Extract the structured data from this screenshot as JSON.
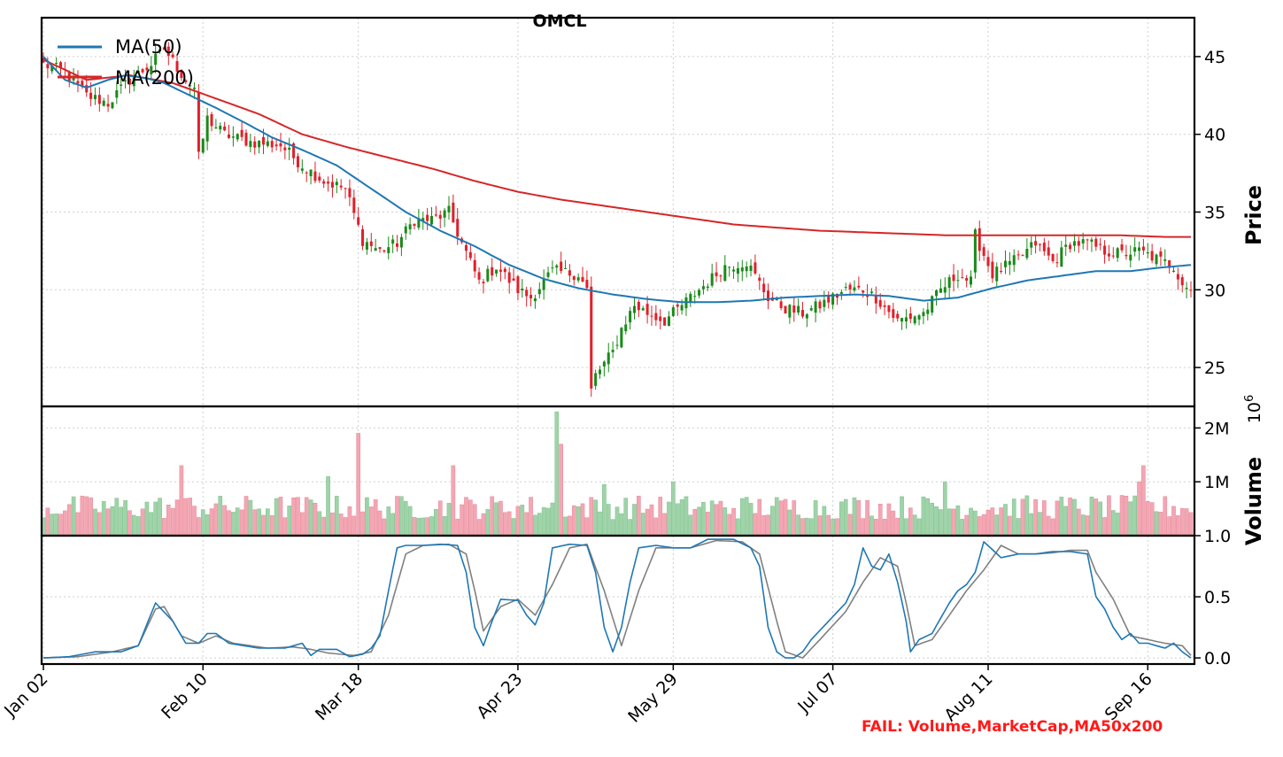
{
  "chart_data": {
    "type": "candlestick",
    "title": "OMCL",
    "x_tick_labels": [
      "Jan 02",
      "Feb 10",
      "Mar 18",
      "Apr 23",
      "May 29",
      "Jul 07",
      "Aug 11",
      "Sep 16"
    ],
    "fail_text": "FAIL: Volume,MarketCap,MA50x200",
    "colors": {
      "up": "#1a8a1a",
      "down": "#e0202a",
      "ma50": "#1f77b4",
      "ma200": "#d62728",
      "stoch_k": "#1f77b4",
      "stoch_d": "#808080",
      "fail": "#ff1a1a",
      "vol_up": "#9fd3a8",
      "vol_down": "#f4a6b3"
    },
    "panels": {
      "price": {
        "ylabel": "Price",
        "ylim": [
          22.5,
          47.5
        ],
        "yticks": [
          25,
          30,
          35,
          40,
          45
        ],
        "ytick_labels": [
          "25",
          "30",
          "35",
          "40",
          "45"
        ],
        "legend": {
          "placement": "upper-left",
          "items": [
            "MA(50)",
            "MA(200)"
          ]
        },
        "close_anchors": [
          [
            0,
            44.5
          ],
          [
            5,
            44
          ],
          [
            10,
            42.5
          ],
          [
            15,
            42
          ],
          [
            20,
            43.5
          ],
          [
            25,
            44.5
          ],
          [
            28,
            45.5
          ],
          [
            33,
            43.5
          ],
          [
            35,
            43
          ],
          [
            36,
            38.5
          ],
          [
            38,
            41
          ],
          [
            42,
            40
          ],
          [
            48,
            39.5
          ],
          [
            55,
            39.3
          ],
          [
            60,
            38
          ],
          [
            65,
            37
          ],
          [
            70,
            36.5
          ],
          [
            74,
            33.2
          ],
          [
            78,
            32.5
          ],
          [
            82,
            33
          ],
          [
            86,
            34.5
          ],
          [
            90,
            34.5
          ],
          [
            94,
            35
          ],
          [
            97,
            33
          ],
          [
            101,
            30.5
          ],
          [
            105,
            31.5
          ],
          [
            110,
            30
          ],
          [
            113,
            29.5
          ],
          [
            118,
            31.2
          ],
          [
            124,
            31
          ],
          [
            126,
            30
          ],
          [
            127,
            23.5
          ],
          [
            128,
            24.5
          ],
          [
            132,
            26
          ],
          [
            134,
            27.5
          ],
          [
            137,
            29
          ],
          [
            140,
            28.5
          ],
          [
            144,
            28
          ],
          [
            148,
            29
          ],
          [
            152,
            30
          ],
          [
            158,
            31.5
          ],
          [
            163,
            31.8
          ],
          [
            168,
            29.5
          ],
          [
            172,
            28.8
          ],
          [
            176,
            28.5
          ],
          [
            180,
            29
          ],
          [
            186,
            30
          ],
          [
            190,
            30
          ],
          [
            193,
            29.5
          ],
          [
            198,
            28
          ],
          [
            204,
            28.5
          ],
          [
            208,
            30
          ],
          [
            212,
            31
          ],
          [
            215,
            30.5
          ],
          [
            216,
            33.5
          ],
          [
            220,
            31
          ],
          [
            226,
            32
          ],
          [
            230,
            33
          ],
          [
            234,
            31.8
          ],
          [
            238,
            33
          ],
          [
            242,
            33
          ],
          [
            246,
            32.5
          ],
          [
            250,
            32.3
          ],
          [
            254,
            32.5
          ],
          [
            258,
            32
          ],
          [
            262,
            31.5
          ],
          [
            264,
            30.5
          ],
          [
            266,
            30
          ]
        ],
        "ma50_anchors": [
          [
            0,
            45
          ],
          [
            5,
            43.5
          ],
          [
            10,
            43
          ],
          [
            15,
            43.5
          ],
          [
            19,
            43.8
          ],
          [
            24,
            43.6
          ],
          [
            28,
            43.3
          ],
          [
            34,
            42.5
          ],
          [
            40,
            41.7
          ],
          [
            47,
            40.7
          ],
          [
            53,
            39.8
          ],
          [
            60,
            39
          ],
          [
            68,
            38
          ],
          [
            76,
            36.5
          ],
          [
            84,
            35
          ],
          [
            92,
            33.8
          ],
          [
            100,
            32.8
          ],
          [
            108,
            31.6
          ],
          [
            116,
            30.7
          ],
          [
            124,
            30.1
          ],
          [
            132,
            29.7
          ],
          [
            140,
            29.4
          ],
          [
            148,
            29.2
          ],
          [
            156,
            29.2
          ],
          [
            164,
            29.3
          ],
          [
            172,
            29.5
          ],
          [
            180,
            29.6
          ],
          [
            188,
            29.7
          ],
          [
            196,
            29.6
          ],
          [
            204,
            29.3
          ],
          [
            212,
            29.5
          ],
          [
            220,
            30.1
          ],
          [
            228,
            30.6
          ],
          [
            236,
            30.9
          ],
          [
            244,
            31.2
          ],
          [
            252,
            31.2
          ],
          [
            258,
            31.4
          ],
          [
            266,
            31.6
          ]
        ],
        "ma200_anchors": [
          [
            0,
            44.8
          ],
          [
            10,
            43.5
          ],
          [
            20,
            43.8
          ],
          [
            30,
            43.3
          ],
          [
            40,
            42.3
          ],
          [
            50,
            41.3
          ],
          [
            60,
            40
          ],
          [
            70,
            39.2
          ],
          [
            80,
            38.5
          ],
          [
            90,
            37.8
          ],
          [
            100,
            37
          ],
          [
            110,
            36.3
          ],
          [
            120,
            35.8
          ],
          [
            130,
            35.4
          ],
          [
            140,
            35
          ],
          [
            150,
            34.6
          ],
          [
            160,
            34.2
          ],
          [
            170,
            34
          ],
          [
            180,
            33.8
          ],
          [
            190,
            33.7
          ],
          [
            200,
            33.6
          ],
          [
            210,
            33.5
          ],
          [
            220,
            33.5
          ],
          [
            230,
            33.5
          ],
          [
            240,
            33.5
          ],
          [
            250,
            33.5
          ],
          [
            260,
            33.4
          ],
          [
            266,
            33.4
          ]
        ]
      },
      "volume": {
        "ylabel": "Volume",
        "multiplier_label": "10^6",
        "ylim": [
          0,
          2.4
        ],
        "yticks": [
          1,
          2
        ],
        "ytick_labels": [
          "1M",
          "2M"
        ],
        "spikes": [
          [
            32,
            1.3
          ],
          [
            34,
            0.7
          ],
          [
            66,
            1.1
          ],
          [
            73,
            1.9
          ],
          [
            95,
            1.3
          ],
          [
            119,
            2.3
          ],
          [
            120,
            1.7
          ],
          [
            130,
            0.95
          ],
          [
            146,
            1.0
          ],
          [
            209,
            1.0
          ],
          [
            254,
            1.0
          ],
          [
            255,
            1.3
          ]
        ]
      },
      "oscillator": {
        "ylim": [
          -0.05,
          1.0
        ],
        "yticks": [
          0.0,
          0.5,
          1.0
        ],
        "ytick_labels": [
          "0.0",
          "0.5",
          "1.0"
        ],
        "k_anchors": [
          [
            0,
            0
          ],
          [
            6,
            0.01
          ],
          [
            12,
            0.05
          ],
          [
            18,
            0.05
          ],
          [
            22,
            0.1
          ],
          [
            26,
            0.45
          ],
          [
            30,
            0.3
          ],
          [
            33,
            0.12
          ],
          [
            36,
            0.12
          ],
          [
            38,
            0.2
          ],
          [
            40,
            0.2
          ],
          [
            43,
            0.12
          ],
          [
            50,
            0.08
          ],
          [
            56,
            0.08
          ],
          [
            60,
            0.12
          ],
          [
            62,
            0.02
          ],
          [
            64,
            0.07
          ],
          [
            68,
            0.07
          ],
          [
            71,
            0.01
          ],
          [
            74,
            0.03
          ],
          [
            76,
            0.08
          ],
          [
            78,
            0.18
          ],
          [
            80,
            0.55
          ],
          [
            82,
            0.9
          ],
          [
            84,
            0.92
          ],
          [
            88,
            0.92
          ],
          [
            92,
            0.93
          ],
          [
            96,
            0.92
          ],
          [
            98,
            0.7
          ],
          [
            100,
            0.25
          ],
          [
            102,
            0.1
          ],
          [
            104,
            0.3
          ],
          [
            106,
            0.48
          ],
          [
            110,
            0.47
          ],
          [
            112,
            0.35
          ],
          [
            114,
            0.27
          ],
          [
            116,
            0.45
          ],
          [
            118,
            0.9
          ],
          [
            122,
            0.93
          ],
          [
            126,
            0.92
          ],
          [
            128,
            0.7
          ],
          [
            130,
            0.25
          ],
          [
            132,
            0.05
          ],
          [
            134,
            0.25
          ],
          [
            136,
            0.62
          ],
          [
            138,
            0.9
          ],
          [
            142,
            0.92
          ],
          [
            146,
            0.9
          ],
          [
            150,
            0.9
          ],
          [
            154,
            0.97
          ],
          [
            160,
            0.97
          ],
          [
            164,
            0.9
          ],
          [
            166,
            0.75
          ],
          [
            168,
            0.25
          ],
          [
            170,
            0.05
          ],
          [
            172,
            0.0
          ],
          [
            174,
            0.0
          ],
          [
            176,
            0.05
          ],
          [
            178,
            0.15
          ],
          [
            182,
            0.3
          ],
          [
            186,
            0.45
          ],
          [
            188,
            0.6
          ],
          [
            190,
            0.9
          ],
          [
            192,
            0.75
          ],
          [
            194,
            0.72
          ],
          [
            196,
            0.85
          ],
          [
            198,
            0.62
          ],
          [
            200,
            0.3
          ],
          [
            201,
            0.05
          ],
          [
            203,
            0.15
          ],
          [
            206,
            0.2
          ],
          [
            210,
            0.45
          ],
          [
            212,
            0.55
          ],
          [
            214,
            0.6
          ],
          [
            216,
            0.7
          ],
          [
            218,
            0.95
          ],
          [
            222,
            0.82
          ],
          [
            226,
            0.85
          ],
          [
            230,
            0.85
          ],
          [
            234,
            0.87
          ],
          [
            238,
            0.87
          ],
          [
            242,
            0.85
          ],
          [
            244,
            0.5
          ],
          [
            246,
            0.4
          ],
          [
            248,
            0.25
          ],
          [
            250,
            0.15
          ],
          [
            252,
            0.2
          ],
          [
            254,
            0.12
          ],
          [
            256,
            0.12
          ],
          [
            258,
            0.1
          ],
          [
            260,
            0.08
          ],
          [
            262,
            0.12
          ],
          [
            264,
            0.05
          ],
          [
            266,
            0.0
          ]
        ],
        "d_anchors": [
          [
            0,
            0
          ],
          [
            8,
            0.01
          ],
          [
            16,
            0.05
          ],
          [
            22,
            0.1
          ],
          [
            26,
            0.4
          ],
          [
            28,
            0.42
          ],
          [
            32,
            0.18
          ],
          [
            36,
            0.12
          ],
          [
            40,
            0.18
          ],
          [
            44,
            0.12
          ],
          [
            52,
            0.08
          ],
          [
            58,
            0.09
          ],
          [
            62,
            0.07
          ],
          [
            66,
            0.04
          ],
          [
            72,
            0.02
          ],
          [
            76,
            0.05
          ],
          [
            80,
            0.35
          ],
          [
            84,
            0.85
          ],
          [
            88,
            0.92
          ],
          [
            94,
            0.93
          ],
          [
            98,
            0.85
          ],
          [
            100,
            0.55
          ],
          [
            102,
            0.22
          ],
          [
            106,
            0.42
          ],
          [
            110,
            0.48
          ],
          [
            114,
            0.35
          ],
          [
            118,
            0.6
          ],
          [
            122,
            0.9
          ],
          [
            126,
            0.93
          ],
          [
            130,
            0.55
          ],
          [
            134,
            0.1
          ],
          [
            138,
            0.55
          ],
          [
            142,
            0.9
          ],
          [
            146,
            0.9
          ],
          [
            150,
            0.9
          ],
          [
            156,
            0.96
          ],
          [
            162,
            0.95
          ],
          [
            166,
            0.85
          ],
          [
            170,
            0.3
          ],
          [
            172,
            0.05
          ],
          [
            176,
            0.0
          ],
          [
            180,
            0.15
          ],
          [
            186,
            0.38
          ],
          [
            190,
            0.62
          ],
          [
            194,
            0.82
          ],
          [
            198,
            0.75
          ],
          [
            200,
            0.45
          ],
          [
            202,
            0.1
          ],
          [
            206,
            0.15
          ],
          [
            210,
            0.35
          ],
          [
            214,
            0.55
          ],
          [
            218,
            0.72
          ],
          [
            222,
            0.92
          ],
          [
            226,
            0.85
          ],
          [
            230,
            0.85
          ],
          [
            234,
            0.86
          ],
          [
            238,
            0.88
          ],
          [
            242,
            0.88
          ],
          [
            244,
            0.7
          ],
          [
            248,
            0.48
          ],
          [
            252,
            0.18
          ],
          [
            256,
            0.15
          ],
          [
            260,
            0.12
          ],
          [
            264,
            0.1
          ],
          [
            266,
            0.02
          ]
        ]
      }
    }
  }
}
